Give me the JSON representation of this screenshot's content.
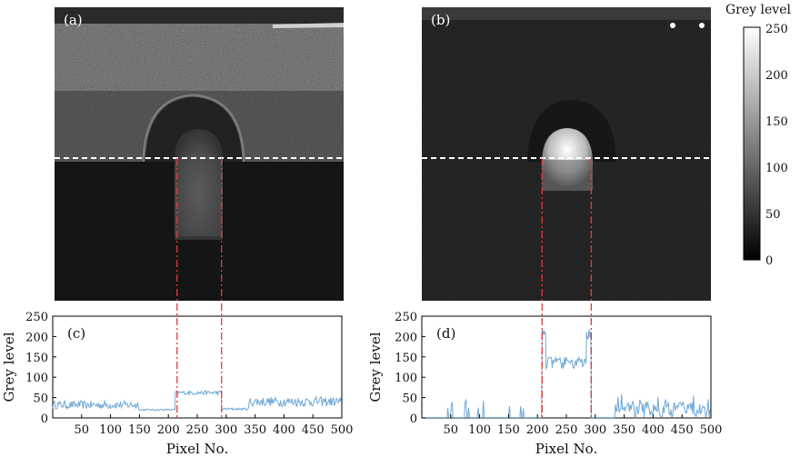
{
  "figure": {
    "panels": {
      "a": {
        "label": "(a)"
      },
      "b": {
        "label": "(b)"
      },
      "c": {
        "label": "(c)"
      },
      "d": {
        "label": "(d)"
      }
    },
    "colorbar": {
      "title": "Grey level",
      "ticks": [
        "250",
        "200",
        "150",
        "100",
        "50",
        "0"
      ]
    },
    "colors": {
      "trace": "#6fa8d6",
      "guide": "#e23a3a",
      "scanline": "#ffffff"
    }
  },
  "chart_data": [
    {
      "type": "line",
      "panel": "(c)",
      "xlabel": "Pixel No.",
      "ylabel": "Grey level",
      "xlim": [
        0,
        500
      ],
      "ylim": [
        0,
        250
      ],
      "xticks": [
        50,
        100,
        150,
        200,
        250,
        300,
        350,
        400,
        450,
        500
      ],
      "yticks": [
        0,
        50,
        100,
        150,
        200,
        250
      ],
      "markers": [
        215,
        292
      ],
      "segments": [
        {
          "x_range": [
            0,
            150
          ],
          "level": 32,
          "noise": 10
        },
        {
          "x_range": [
            150,
            212
          ],
          "level": 20,
          "noise": 2
        },
        {
          "x_range": [
            212,
            292
          ],
          "level": 62,
          "noise": 5
        },
        {
          "x_range": [
            292,
            340
          ],
          "level": 22,
          "noise": 3
        },
        {
          "x_range": [
            340,
            500
          ],
          "level": 40,
          "noise": 12
        }
      ]
    },
    {
      "type": "line",
      "panel": "(d)",
      "xlabel": "Pixel No.",
      "ylabel": "Grey level",
      "xlim": [
        0,
        500
      ],
      "ylim": [
        0,
        250
      ],
      "xticks": [
        50,
        100,
        150,
        200,
        250,
        300,
        350,
        400,
        450,
        500
      ],
      "yticks": [
        0,
        50,
        100,
        150,
        200,
        250
      ],
      "markers": [
        208,
        293
      ],
      "segments": [
        {
          "x_range": [
            0,
            208
          ],
          "level": 0,
          "noise": 0,
          "spikes": 45
        },
        {
          "x_range": [
            208,
            215
          ],
          "level": 220,
          "noise": 15
        },
        {
          "x_range": [
            215,
            285
          ],
          "level": 135,
          "noise": 15
        },
        {
          "x_range": [
            285,
            293
          ],
          "level": 205,
          "noise": 15
        },
        {
          "x_range": [
            293,
            335
          ],
          "level": 0,
          "noise": 0
        },
        {
          "x_range": [
            335,
            500
          ],
          "level": 20,
          "noise": 20,
          "spikes": 55
        }
      ]
    }
  ]
}
